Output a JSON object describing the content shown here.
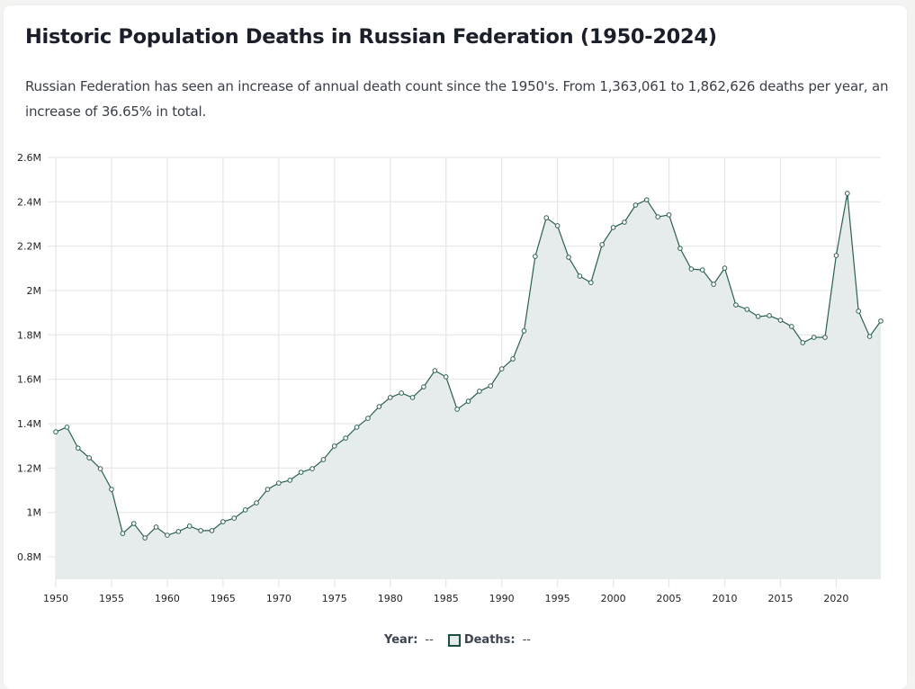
{
  "header": {
    "title": "Historic Population Deaths in Russian Federation (1950-2024)",
    "description": "Russian Federation has seen an increase of annual death count since the 1950's. From 1,363,061 to 1,862,626 deaths per year, an increase of 36.65% in total."
  },
  "legend": {
    "year_label": "Year:",
    "year_value": "--",
    "deaths_label": "Deaths:",
    "deaths_value": "--"
  },
  "colors": {
    "line": "#2b5f55",
    "area": "#e5ebea",
    "grid": "#e6e6e6",
    "page_bg": "#f3f3f2",
    "card_bg": "#ffffff"
  },
  "chart_data": {
    "type": "area",
    "title": "Historic Population Deaths in Russian Federation (1950-2024)",
    "xlabel": "Year",
    "ylabel": "Deaths",
    "xlim": [
      1950,
      2024
    ],
    "ylim": [
      700000,
      2600000
    ],
    "grid": true,
    "legend_position": "bottom-center",
    "x_ticks": [
      1950,
      1955,
      1960,
      1965,
      1970,
      1975,
      1980,
      1985,
      1990,
      1995,
      2000,
      2005,
      2010,
      2015,
      2020
    ],
    "y_ticks": [
      {
        "value": 800000,
        "label": "0.8M"
      },
      {
        "value": 1000000,
        "label": "1M"
      },
      {
        "value": 1200000,
        "label": "1.2M"
      },
      {
        "value": 1400000,
        "label": "1.4M"
      },
      {
        "value": 1600000,
        "label": "1.6M"
      },
      {
        "value": 1800000,
        "label": "1.8M"
      },
      {
        "value": 2000000,
        "label": "2M"
      },
      {
        "value": 2200000,
        "label": "2.2M"
      },
      {
        "value": 2400000,
        "label": "2.4M"
      },
      {
        "value": 2600000,
        "label": "2.6M"
      }
    ],
    "series": [
      {
        "name": "Deaths",
        "x": [
          1950,
          1951,
          1952,
          1953,
          1954,
          1955,
          1956,
          1957,
          1958,
          1959,
          1960,
          1961,
          1962,
          1963,
          1964,
          1965,
          1966,
          1967,
          1968,
          1969,
          1970,
          1971,
          1972,
          1973,
          1974,
          1975,
          1976,
          1977,
          1978,
          1979,
          1980,
          1981,
          1982,
          1983,
          1984,
          1985,
          1986,
          1987,
          1988,
          1989,
          1990,
          1991,
          1992,
          1993,
          1994,
          1995,
          1996,
          1997,
          1998,
          1999,
          2000,
          2001,
          2002,
          2003,
          2004,
          2005,
          2006,
          2007,
          2008,
          2009,
          2010,
          2011,
          2012,
          2013,
          2014,
          2015,
          2016,
          2017,
          2018,
          2019,
          2020,
          2021,
          2022,
          2023,
          2024
        ],
        "values": [
          1363061,
          1384000,
          1290000,
          1246000,
          1197000,
          1104000,
          905000,
          950000,
          885000,
          934000,
          897000,
          914000,
          938000,
          918000,
          918000,
          958000,
          974000,
          1011000,
          1043000,
          1104000,
          1132000,
          1145000,
          1181000,
          1197000,
          1238000,
          1299000,
          1335000,
          1384000,
          1424000,
          1477000,
          1518000,
          1538000,
          1518000,
          1566000,
          1639000,
          1611000,
          1465000,
          1501000,
          1546000,
          1570000,
          1647000,
          1692000,
          1818000,
          2154000,
          2328000,
          2292000,
          2150000,
          2065000,
          2036000,
          2207000,
          2284000,
          2308000,
          2385000,
          2409000,
          2332000,
          2341000,
          2190000,
          2097000,
          2093000,
          2028000,
          2101000,
          1935000,
          1915000,
          1883000,
          1887000,
          1866000,
          1838000,
          1765000,
          1789000,
          1789000,
          2158000,
          2438000,
          1907000,
          1793000,
          1862626
        ]
      }
    ]
  }
}
